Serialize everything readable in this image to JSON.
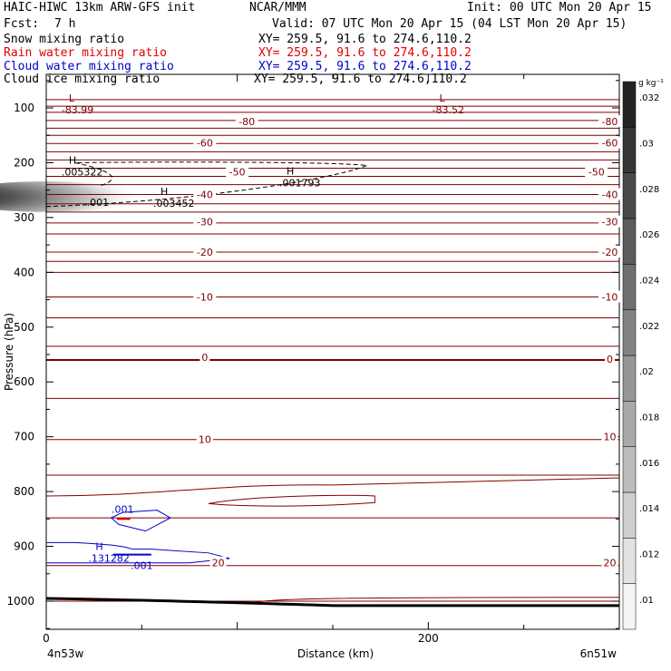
{
  "header": {
    "left_title": "HAIC-HIWC 13km ARW-GFS init",
    "center_title": "NCAR/MMM",
    "init_text": "Init: 00 UTC Mon 20 Apr 15",
    "fcst_label": "Fcst:",
    "fcst_value": "7 h",
    "valid_text": "Valid: 07 UTC Mon 20 Apr 15 (04 LST Mon 20 Apr 15)",
    "rows": [
      {
        "name": "Snow mixing ratio",
        "xy": "XY= 259.5, 91.6 to 274.6,110.2"
      },
      {
        "name": "Rain water mixing ratio",
        "xy": "XY= 259.5, 91.6 to 274.6,110.2"
      },
      {
        "name": "Cloud water mixing ratio",
        "xy": "XY= 259.5, 91.6 to 274.6,110.2"
      },
      {
        "name": "Cloud ice mixing ratio",
        "xy": "XY= 259.5, 91.6 to 274.6,110.2"
      }
    ]
  },
  "colors": {
    "snow": "#000000",
    "rain": "#e00000",
    "cloud_water": "#0000cc",
    "cloud_ice": "#000000",
    "temperature": "#800000"
  },
  "chart_data": {
    "type": "cross-section",
    "ylabel": "Pressure (hPa)",
    "xlabel": "Distance (km)",
    "x_ticks": [
      "0",
      "200"
    ],
    "x_start_label": "4n53w",
    "x_end_label": "6n51w",
    "xlim": [
      0,
      300
    ],
    "ylim": [
      1050,
      50
    ],
    "y_ticks": [
      100,
      200,
      300,
      400,
      500,
      600,
      700,
      800,
      900,
      1000
    ],
    "colorbar": {
      "unit": "g kg⁻¹",
      "ticks": [
        ".01",
        ".012",
        ".014",
        ".016",
        ".018",
        ".02",
        ".022",
        ".024",
        ".026",
        ".028",
        ".03",
        ".032"
      ]
    },
    "temperature_contour_labels": [
      {
        "text": "-80",
        "x": 105,
        "p": 125
      },
      {
        "text": "-80",
        "x": 295,
        "p": 125
      },
      {
        "text": "-60",
        "x": 83,
        "p": 164
      },
      {
        "text": "-60",
        "x": 295,
        "p": 164
      },
      {
        "text": "-50",
        "x": 100,
        "p": 217
      },
      {
        "text": "-50",
        "x": 288,
        "p": 217
      },
      {
        "text": "-40",
        "x": 83,
        "p": 258
      },
      {
        "text": "-40",
        "x": 295,
        "p": 258
      },
      {
        "text": "-30",
        "x": 83,
        "p": 308
      },
      {
        "text": "-30",
        "x": 295,
        "p": 308
      },
      {
        "text": "-20",
        "x": 83,
        "p": 363
      },
      {
        "text": "-20",
        "x": 295,
        "p": 363
      },
      {
        "text": "-10",
        "x": 83,
        "p": 445
      },
      {
        "text": "-10",
        "x": 295,
        "p": 445
      },
      {
        "text": "0",
        "x": 83,
        "p": 555
      },
      {
        "text": "0",
        "x": 295,
        "p": 558
      },
      {
        "text": "10",
        "x": 83,
        "p": 705
      },
      {
        "text": "10",
        "x": 295,
        "p": 700
      },
      {
        "text": "20",
        "x": 90,
        "p": 930
      },
      {
        "text": "20",
        "x": 295,
        "p": 930
      }
    ],
    "temperature_levels_hpa": [
      85,
      97,
      108,
      123,
      137,
      150,
      165,
      180,
      195,
      210,
      225,
      240,
      258,
      275,
      290,
      310,
      330,
      363,
      380,
      400,
      445,
      483,
      535,
      560,
      630,
      705,
      770,
      848,
      935,
      1000
    ],
    "extrema_labels": [
      {
        "mark": "L",
        "value": "-83.99",
        "x": 8,
        "p": 82
      },
      {
        "mark": "L",
        "value": "-83.52",
        "x": 202,
        "p": 82
      },
      {
        "mark": "H",
        "value": ".005322",
        "x": 8,
        "p": 195
      },
      {
        "mark": "H",
        "value": ".003452",
        "x": 56,
        "p": 252
      },
      {
        "mark": "H",
        "value": ".001793",
        "x": 122,
        "p": 215
      },
      {
        "mark": "H",
        "value": ".131282",
        "x": 22,
        "p": 900
      }
    ],
    "contour_labels": [
      {
        "text": ".001",
        "x": 27,
        "p": 272,
        "series": "snow"
      },
      {
        "text": ".001",
        "x": 40,
        "p": 832,
        "series": "cloud_water"
      },
      {
        "text": ".001",
        "x": 50,
        "p": 935,
        "series": "cloud_water"
      }
    ]
  }
}
